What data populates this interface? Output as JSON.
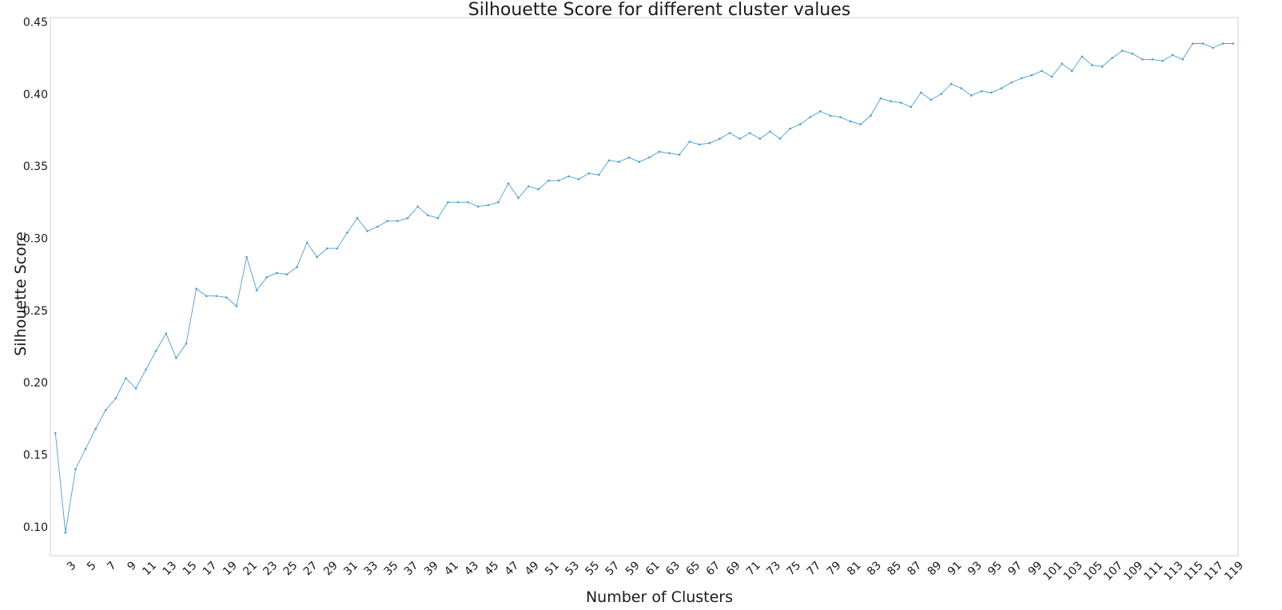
{
  "chart_data": {
    "type": "line",
    "title": "Silhouette Score for different cluster values",
    "xlabel": "Number of Clusters",
    "ylabel": "Silhouette Score",
    "xlim": [
      1.5,
      119.5
    ],
    "ylim": [
      0.08,
      0.453
    ],
    "grid": false,
    "legend": "none",
    "series_color": "#4a9fd5",
    "x_ticks": [
      "3",
      "5",
      "7",
      "9",
      "11",
      "13",
      "15",
      "17",
      "19",
      "21",
      "23",
      "25",
      "27",
      "29",
      "31",
      "33",
      "35",
      "37",
      "39",
      "41",
      "43",
      "45",
      "47",
      "49",
      "51",
      "53",
      "55",
      "57",
      "59",
      "61",
      "63",
      "65",
      "67",
      "69",
      "71",
      "73",
      "75",
      "77",
      "79",
      "81",
      "83",
      "85",
      "87",
      "89",
      "91",
      "93",
      "95",
      "97",
      "99",
      "101",
      "103",
      "105",
      "107",
      "109",
      "111",
      "113",
      "115",
      "117",
      "119"
    ],
    "y_ticks": [
      "0.10",
      "0.15",
      "0.20",
      "0.25",
      "0.30",
      "0.35",
      "0.40",
      "0.45"
    ],
    "x": [
      2,
      3,
      4,
      5,
      6,
      7,
      8,
      9,
      10,
      11,
      12,
      13,
      14,
      15,
      16,
      17,
      18,
      19,
      20,
      21,
      22,
      23,
      24,
      25,
      26,
      27,
      28,
      29,
      30,
      31,
      32,
      33,
      34,
      35,
      36,
      37,
      38,
      39,
      40,
      41,
      42,
      43,
      44,
      45,
      46,
      47,
      48,
      49,
      50,
      51,
      52,
      53,
      54,
      55,
      56,
      57,
      58,
      59,
      60,
      61,
      62,
      63,
      64,
      65,
      66,
      67,
      68,
      69,
      70,
      71,
      72,
      73,
      74,
      75,
      76,
      77,
      78,
      79,
      80,
      81,
      82,
      83,
      84,
      85,
      86,
      87,
      88,
      89,
      90,
      91,
      92,
      93,
      94,
      95,
      96,
      97,
      98,
      99,
      100,
      101,
      102,
      103,
      104,
      105,
      106,
      107,
      108,
      109,
      110,
      111,
      112,
      113,
      114,
      115,
      116,
      117,
      118,
      119
    ],
    "y": [
      0.165,
      0.096,
      0.14,
      0.154,
      0.168,
      0.181,
      0.189,
      0.203,
      0.196,
      0.209,
      0.222,
      0.234,
      0.217,
      0.227,
      0.265,
      0.26,
      0.26,
      0.259,
      0.253,
      0.287,
      0.264,
      0.273,
      0.276,
      0.275,
      0.28,
      0.297,
      0.287,
      0.293,
      0.293,
      0.304,
      0.314,
      0.305,
      0.308,
      0.312,
      0.312,
      0.314,
      0.322,
      0.316,
      0.314,
      0.325,
      0.325,
      0.325,
      0.322,
      0.323,
      0.325,
      0.338,
      0.328,
      0.336,
      0.334,
      0.34,
      0.34,
      0.343,
      0.341,
      0.345,
      0.344,
      0.354,
      0.353,
      0.356,
      0.353,
      0.356,
      0.36,
      0.359,
      0.358,
      0.367,
      0.365,
      0.366,
      0.369,
      0.373,
      0.369,
      0.373,
      0.369,
      0.374,
      0.369,
      0.376,
      0.379,
      0.384,
      0.388,
      0.385,
      0.384,
      0.381,
      0.379,
      0.385,
      0.397,
      0.395,
      0.394,
      0.391,
      0.401,
      0.396,
      0.4,
      0.407,
      0.404,
      0.399,
      0.402,
      0.401,
      0.404,
      0.408,
      0.411,
      0.413,
      0.416,
      0.412,
      0.421,
      0.416,
      0.426,
      0.42,
      0.419,
      0.425,
      0.43,
      0.428,
      0.424,
      0.424,
      0.423,
      0.427,
      0.424,
      0.435,
      0.435,
      0.432,
      0.435,
      0.435
    ]
  }
}
